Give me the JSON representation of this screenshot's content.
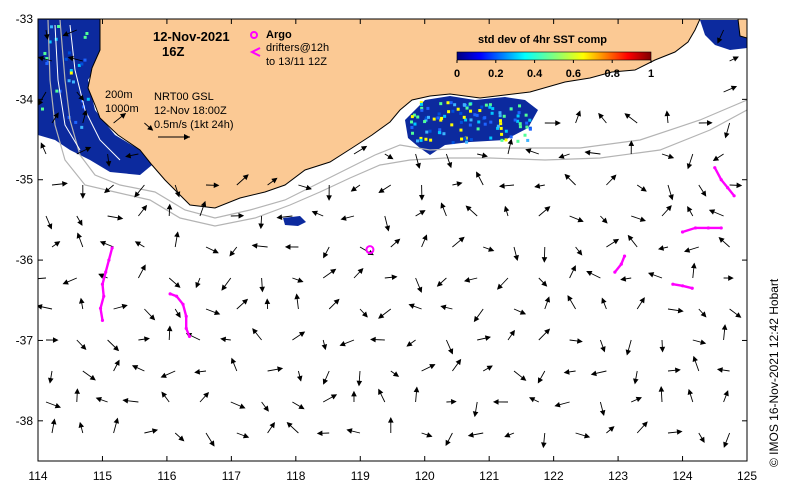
{
  "map": {
    "title_date": "12-Nov-2021",
    "title_time": "16Z",
    "legend": {
      "argo_label": "Argo",
      "drifters_label": "drifters@12h",
      "drifters_range": "to 13/11 12Z",
      "argo_color": "#ff00ff",
      "drifter_color": "#ff00ff"
    },
    "isobath_labels": [
      "200m",
      "1000m"
    ],
    "current_info": {
      "product": "NRT00 GSL",
      "valid_time": "12-Nov 18:00Z",
      "scale": "0.5m/s (1kt 24h)"
    },
    "colorbar": {
      "title": "std dev of 4hr SST comp",
      "ticks": [
        "0",
        "0.2",
        "0.4",
        "0.6",
        "0.8",
        "1"
      ],
      "min": 0,
      "max": 1
    },
    "credit": "©  IMOS 16-Nov-2021 12:42 Hobart",
    "x_axis": {
      "ticks": [
        "114",
        "115",
        "116",
        "117",
        "118",
        "119",
        "120",
        "121",
        "122",
        "123",
        "124",
        "125"
      ],
      "range": [
        114,
        125
      ]
    },
    "y_axis": {
      "ticks": [
        "-33",
        "-34",
        "-35",
        "-36",
        "-37",
        "-38"
      ],
      "range": [
        -38.5,
        -33
      ]
    },
    "colors": {
      "land": "#fbc994",
      "ocean": "#ffffff",
      "sst_low": "#0a1e8c",
      "isobath": "#b4b4b4",
      "arrows": "#000000"
    },
    "argo_float": {
      "lon": 119.15,
      "lat": -35.87
    },
    "drifters": [
      [
        [
          115.0,
          -36.75
        ],
        [
          114.97,
          -36.6
        ],
        [
          115.02,
          -36.45
        ],
        [
          115.0,
          -36.3
        ],
        [
          115.05,
          -36.15
        ],
        [
          115.1,
          -36.0
        ],
        [
          115.15,
          -35.85
        ]
      ],
      [
        [
          116.05,
          -36.42
        ],
        [
          116.15,
          -36.45
        ],
        [
          116.25,
          -36.55
        ],
        [
          116.3,
          -36.7
        ],
        [
          116.3,
          -36.85
        ],
        [
          116.35,
          -36.95
        ]
      ],
      [
        [
          122.95,
          -36.15
        ],
        [
          123.05,
          -36.05
        ],
        [
          123.1,
          -35.95
        ]
      ],
      [
        [
          123.85,
          -36.3
        ],
        [
          124.0,
          -36.32
        ],
        [
          124.15,
          -36.35
        ]
      ],
      [
        [
          124.0,
          -35.65
        ],
        [
          124.2,
          -35.6
        ],
        [
          124.4,
          -35.6
        ],
        [
          124.6,
          -35.6
        ]
      ],
      [
        [
          124.5,
          -34.85
        ],
        [
          124.6,
          -35.0
        ],
        [
          124.7,
          -35.1
        ],
        [
          124.8,
          -35.2
        ]
      ]
    ]
  }
}
